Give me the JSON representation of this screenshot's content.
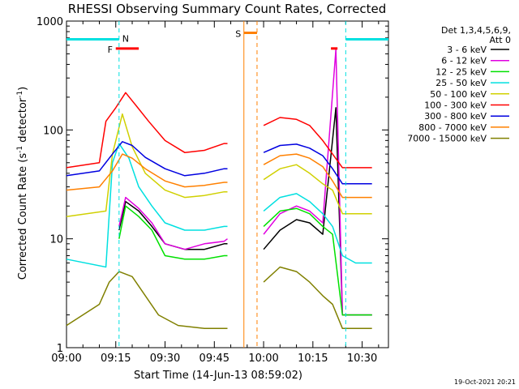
{
  "chart_data": {
    "type": "line",
    "title": "RHESSI Observing Summary Count Rates, Corrected",
    "xlabel": "Start Time (14-Jun-13 08:59:02)",
    "ylabel": "Corrected Count Rate (s",
    "ylabel_sup1": "-1",
    "ylabel_mid": " detector",
    "ylabel_sup2": "-1",
    "ylabel_end": ")",
    "yscale": "log",
    "ylim": [
      1,
      1000
    ],
    "xlim_minutes": [
      0,
      98
    ],
    "x_tick_labels": [
      "09:00",
      "09:15",
      "09:30",
      "09:45",
      "10:00",
      "10:15",
      "10:30"
    ],
    "x_tick_minutes": [
      0,
      15,
      30,
      45,
      60,
      75,
      90
    ],
    "y_tick_labels": [
      "1",
      "10",
      "100",
      "1000"
    ],
    "y_tick_values": [
      1,
      10,
      100,
      1000
    ],
    "legend_header": [
      "Det 1,3,4,5,6,9,",
      "Att 0"
    ],
    "legend_position": "right",
    "footer_timestamp": "19-Oct-2021 20:21",
    "flag_labels": {
      "night": "N",
      "flare": "F",
      "saa": "S"
    },
    "flags": {
      "night": [
        [
          0,
          16
        ],
        [
          85,
          98
        ]
      ],
      "flare": [
        [
          15,
          22
        ],
        [
          80.5,
          82.5
        ]
      ],
      "saa": [
        [
          54,
          58
        ]
      ]
    },
    "series": [
      {
        "name": "3 - 6 keV",
        "color": "#000000",
        "points": [
          [
            16,
            12
          ],
          [
            18,
            22
          ],
          [
            22,
            18
          ],
          [
            26,
            13
          ],
          [
            30,
            9
          ],
          [
            36,
            8
          ],
          [
            42,
            8
          ],
          [
            48,
            9
          ],
          [
            49,
            9
          ],
          [
            60,
            8
          ],
          [
            65,
            12
          ],
          [
            70,
            15
          ],
          [
            74,
            14
          ],
          [
            78,
            11
          ],
          [
            82,
            160
          ],
          [
            84,
            2
          ],
          [
            88,
            2
          ],
          [
            93,
            2
          ]
        ]
      },
      {
        "name": "6 - 12 keV",
        "color": "#e000e0",
        "points": [
          [
            16,
            13
          ],
          [
            18,
            24
          ],
          [
            22,
            19
          ],
          [
            26,
            14
          ],
          [
            30,
            9
          ],
          [
            36,
            8
          ],
          [
            42,
            9
          ],
          [
            48,
            9.5
          ],
          [
            49,
            10
          ],
          [
            60,
            11
          ],
          [
            65,
            17
          ],
          [
            70,
            20
          ],
          [
            74,
            18
          ],
          [
            78,
            14
          ],
          [
            82,
            550
          ],
          [
            84,
            2
          ],
          [
            88,
            2
          ],
          [
            93,
            2
          ]
        ]
      },
      {
        "name": "12 - 25 keV",
        "color": "#00e000",
        "points": [
          [
            16,
            10
          ],
          [
            18,
            20
          ],
          [
            22,
            16
          ],
          [
            26,
            12
          ],
          [
            30,
            7
          ],
          [
            36,
            6.5
          ],
          [
            42,
            6.5
          ],
          [
            48,
            7
          ],
          [
            49,
            7
          ],
          [
            60,
            13
          ],
          [
            65,
            18
          ],
          [
            70,
            19
          ],
          [
            74,
            17
          ],
          [
            78,
            13
          ],
          [
            81,
            11
          ],
          [
            84,
            2
          ],
          [
            88,
            2
          ],
          [
            93,
            2
          ]
        ]
      },
      {
        "name": "25 - 50 keV",
        "color": "#00e0e0",
        "points": [
          [
            0,
            6.5
          ],
          [
            12,
            5.5
          ],
          [
            14,
            50
          ],
          [
            16,
            75
          ],
          [
            19,
            55
          ],
          [
            22,
            30
          ],
          [
            26,
            20
          ],
          [
            30,
            14
          ],
          [
            36,
            12
          ],
          [
            42,
            12
          ],
          [
            48,
            13
          ],
          [
            49,
            13
          ],
          [
            60,
            18
          ],
          [
            65,
            24
          ],
          [
            70,
            26
          ],
          [
            74,
            22
          ],
          [
            78,
            17
          ],
          [
            81,
            13
          ],
          [
            84,
            7
          ],
          [
            88,
            6
          ],
          [
            93,
            6
          ]
        ]
      },
      {
        "name": "50 - 100 keV",
        "color": "#d0d000",
        "points": [
          [
            0,
            16
          ],
          [
            12,
            18
          ],
          [
            14,
            60
          ],
          [
            17,
            140
          ],
          [
            20,
            70
          ],
          [
            24,
            40
          ],
          [
            30,
            28
          ],
          [
            36,
            24
          ],
          [
            42,
            25
          ],
          [
            48,
            27
          ],
          [
            49,
            27
          ],
          [
            60,
            35
          ],
          [
            65,
            44
          ],
          [
            70,
            48
          ],
          [
            74,
            40
          ],
          [
            78,
            32
          ],
          [
            81,
            28
          ],
          [
            84,
            17
          ],
          [
            88,
            17
          ],
          [
            93,
            17
          ]
        ]
      },
      {
        "name": "100 - 300 keV",
        "color": "#ff0000",
        "points": [
          [
            0,
            45
          ],
          [
            10,
            50
          ],
          [
            12,
            120
          ],
          [
            15,
            160
          ],
          [
            18,
            220
          ],
          [
            21,
            170
          ],
          [
            25,
            120
          ],
          [
            30,
            80
          ],
          [
            36,
            62
          ],
          [
            42,
            65
          ],
          [
            48,
            75
          ],
          [
            49,
            75
          ],
          [
            60,
            110
          ],
          [
            65,
            130
          ],
          [
            70,
            125
          ],
          [
            74,
            110
          ],
          [
            78,
            80
          ],
          [
            81,
            60
          ],
          [
            84,
            45
          ],
          [
            88,
            45
          ],
          [
            93,
            45
          ]
        ]
      },
      {
        "name": "300 - 800 keV",
        "color": "#0000e0",
        "points": [
          [
            0,
            38
          ],
          [
            10,
            42
          ],
          [
            14,
            60
          ],
          [
            17,
            78
          ],
          [
            20,
            72
          ],
          [
            24,
            56
          ],
          [
            30,
            44
          ],
          [
            36,
            38
          ],
          [
            42,
            40
          ],
          [
            48,
            44
          ],
          [
            49,
            44
          ],
          [
            60,
            62
          ],
          [
            65,
            72
          ],
          [
            70,
            74
          ],
          [
            74,
            68
          ],
          [
            78,
            58
          ],
          [
            81,
            44
          ],
          [
            84,
            32
          ],
          [
            88,
            32
          ],
          [
            93,
            32
          ]
        ]
      },
      {
        "name": "800 - 7000 keV",
        "color": "#ff8000",
        "points": [
          [
            0,
            28
          ],
          [
            10,
            30
          ],
          [
            14,
            42
          ],
          [
            17,
            60
          ],
          [
            20,
            55
          ],
          [
            24,
            44
          ],
          [
            30,
            34
          ],
          [
            36,
            30
          ],
          [
            42,
            31
          ],
          [
            48,
            33
          ],
          [
            49,
            33
          ],
          [
            60,
            48
          ],
          [
            65,
            58
          ],
          [
            70,
            60
          ],
          [
            74,
            55
          ],
          [
            78,
            46
          ],
          [
            81,
            34
          ],
          [
            84,
            24
          ],
          [
            88,
            24
          ],
          [
            93,
            24
          ]
        ]
      },
      {
        "name": "7000 - 15000 keV",
        "color": "#808000",
        "points": [
          [
            0,
            1.6
          ],
          [
            10,
            2.5
          ],
          [
            13,
            4
          ],
          [
            16,
            5
          ],
          [
            20,
            4.5
          ],
          [
            24,
            3
          ],
          [
            28,
            2
          ],
          [
            34,
            1.6
          ],
          [
            42,
            1.5
          ],
          [
            48,
            1.5
          ],
          [
            49,
            1.5
          ],
          [
            60,
            4
          ],
          [
            65,
            5.5
          ],
          [
            70,
            5
          ],
          [
            74,
            4
          ],
          [
            78,
            3
          ],
          [
            81,
            2.5
          ],
          [
            84,
            1.5
          ],
          [
            88,
            1.5
          ],
          [
            93,
            1.5
          ]
        ]
      }
    ]
  }
}
